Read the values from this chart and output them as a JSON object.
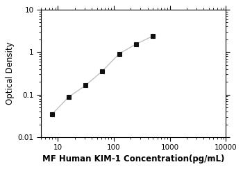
{
  "x": [
    7.8,
    15.6,
    31.25,
    62.5,
    125,
    250,
    500
  ],
  "y": [
    0.034,
    0.088,
    0.165,
    0.36,
    0.92,
    1.55,
    2.4
  ],
  "xlim": [
    5,
    10000
  ],
  "ylim": [
    0.01,
    10
  ],
  "xlabel": "MF Human KIM-1 Concentration(pg/mL)",
  "ylabel": "Optical Density",
  "line_color": "#bbbbbb",
  "marker_color": "#111111",
  "marker": "s",
  "marker_size": 4,
  "xlabel_fontsize": 8.5,
  "ylabel_fontsize": 8.5,
  "tick_fontsize": 7.5,
  "xlabel_bold": true,
  "figsize": [
    3.5,
    2.44
  ],
  "dpi": 100
}
